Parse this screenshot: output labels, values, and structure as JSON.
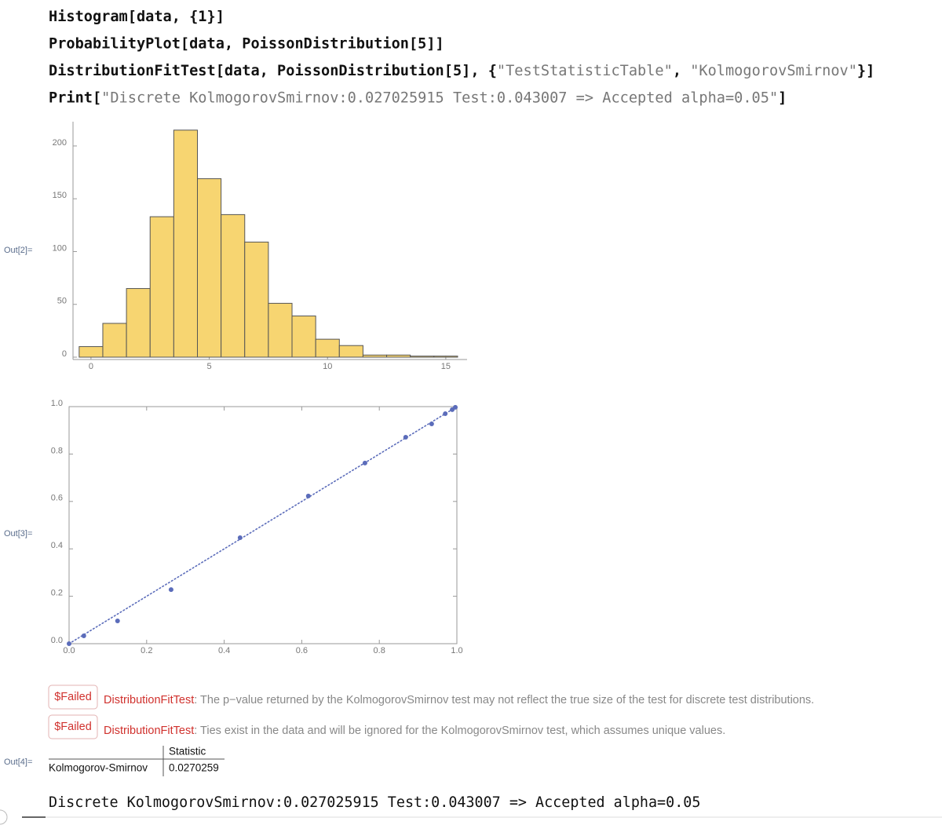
{
  "notebook": {
    "input_lines": [
      [
        "Histogram[data, {1}]"
      ],
      [
        "ProbabilityPlot[data, PoissonDistribution[5]]"
      ],
      [
        "DistributionFitTest[data, PoissonDistribution[5], {",
        "\"TestStatisticTable\"",
        ", ",
        "\"KolmogorovSmirnov\"",
        "}]"
      ],
      [
        "Print[",
        "\"Discrete KolmogorovSmirnov:0.027025915 Test:0.043007 => Accepted alpha=0.05\"",
        "]"
      ]
    ],
    "out_labels": [
      "Out[2]=",
      "Out[3]=",
      "Out[4]="
    ],
    "messages": [
      {
        "tag": "$Failed",
        "symbol": "DistributionFitTest",
        "text": ": The p−value returned by the KolmogorovSmirnov test may not reflect the true size of the test for discrete test distributions."
      },
      {
        "tag": "$Failed",
        "symbol": "DistributionFitTest",
        "text": ": Ties exist in the data and will be ignored for the KolmogorovSmirnov test,  which assumes unique values."
      }
    ],
    "table": {
      "header": "Statistic",
      "rows": [
        [
          "Kolmogorov-Smirnov",
          "0.0270259"
        ]
      ]
    },
    "print_output": "Discrete KolmogorovSmirnov:0.027025915 Test:0.043007 => Accepted alpha=0.05"
  },
  "chart_data": [
    {
      "type": "histogram",
      "color": "#f7d571",
      "bins": [
        -0.5,
        0.5,
        1.5,
        2.5,
        3.5,
        4.5,
        5.5,
        6.5,
        7.5,
        8.5,
        9.5,
        10.5,
        11.5,
        12.5,
        13.5,
        14.5,
        15.5
      ],
      "values": [
        10,
        32,
        65,
        133,
        215,
        169,
        135,
        109,
        51,
        39,
        17,
        11,
        2,
        2,
        1,
        1
      ],
      "xlim": [
        -0.76,
        15.9
      ],
      "ylim": [
        0,
        223
      ],
      "xticks": [
        0,
        5,
        10,
        15
      ],
      "yticks": [
        0,
        50,
        100,
        150,
        200
      ]
    },
    {
      "type": "scatter",
      "color": "#5b6cba",
      "frame": true,
      "x": [
        0,
        0.038,
        0.125,
        0.263,
        0.441,
        0.617,
        0.763,
        0.868,
        0.935,
        0.97,
        0.988,
        0.996
      ],
      "values": [
        0,
        0.033,
        0.096,
        0.228,
        0.447,
        0.623,
        0.762,
        0.871,
        0.927,
        0.97,
        0.987,
        0.997
      ],
      "xlim": [
        0,
        1
      ],
      "ylim": [
        0,
        1
      ],
      "xticks": [
        {
          "value": 0,
          "label": "0.0"
        },
        0.2,
        0.4,
        0.6,
        0.8,
        {
          "value": 1,
          "label": "1.0"
        }
      ],
      "yticks": [
        {
          "value": 0,
          "label": "0.0"
        },
        0.2,
        0.4,
        0.6,
        0.8,
        {
          "value": 1,
          "label": "1.0"
        }
      ]
    }
  ]
}
